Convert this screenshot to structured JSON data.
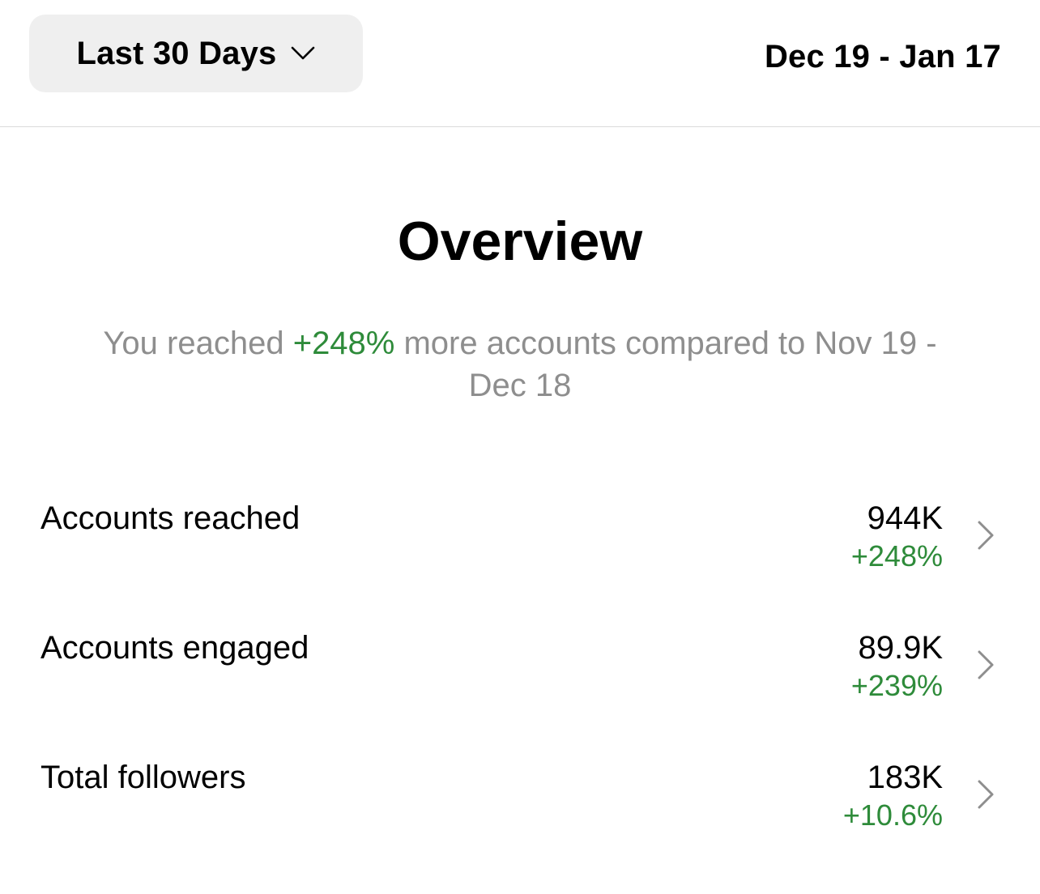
{
  "header": {
    "range_label": "Last 30 Days",
    "date_range": "Dec 19 - Jan 17"
  },
  "overview": {
    "title": "Overview",
    "summary_prefix": "You reached ",
    "summary_pct": "+248%",
    "summary_suffix": " more accounts compared to Nov 19 - Dec 18"
  },
  "metrics": [
    {
      "label": "Accounts reached",
      "value": "944K",
      "change": "+248%"
    },
    {
      "label": "Accounts engaged",
      "value": "89.9K",
      "change": "+239%"
    },
    {
      "label": "Total followers",
      "value": "183K",
      "change": "+10.6%"
    }
  ],
  "colors": {
    "positive": "#2e8b3a",
    "muted_text": "#8e8e8e",
    "button_bg": "#efefef",
    "divider": "#dbdbdb"
  },
  "icons": {
    "range_dropdown": "chevron-down-icon",
    "row_arrow": "chevron-right-icon"
  }
}
